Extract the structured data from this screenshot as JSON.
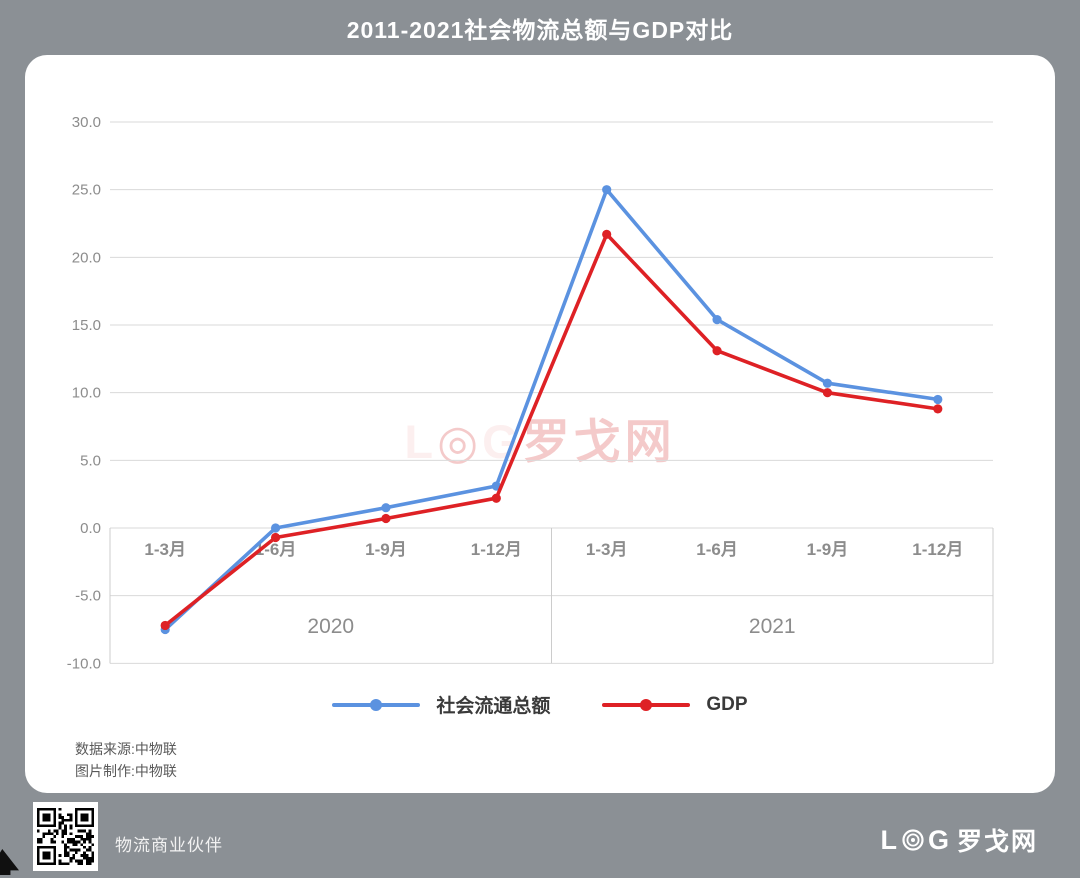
{
  "page": {
    "title": "2011-2021社会物流总额与GDP对比"
  },
  "colors": {
    "background": "#8b9095",
    "card": "#ffffff",
    "series_blue": "#5b92e0",
    "series_red": "#de2125",
    "gridline": "#dadada",
    "band_border": "#cccccc",
    "axis_text": "#8c8c8c",
    "legend_text": "#3a3a3a",
    "footer_text": "#595959"
  },
  "chart_data": {
    "type": "line",
    "title": "2011-2021社会物流总额与GDP对比",
    "categories": [
      "1-3月",
      "1-6月",
      "1-9月",
      "1-12月",
      "1-3月",
      "1-6月",
      "1-9月",
      "1-12月"
    ],
    "group_labels": [
      "2020",
      "2021"
    ],
    "series": [
      {
        "name": "社会流通总额",
        "color_key": "series_blue",
        "values": [
          -7.5,
          0.0,
          1.5,
          3.1,
          25.0,
          15.4,
          10.7,
          9.5
        ]
      },
      {
        "name": "GDP",
        "color_key": "series_red",
        "values": [
          -7.2,
          -0.7,
          0.7,
          2.2,
          21.7,
          13.1,
          10.0,
          8.8
        ]
      }
    ],
    "y_ticks": [
      {
        "label": "30.0",
        "value": 30
      },
      {
        "label": "25.0",
        "value": 25
      },
      {
        "label": "20.0",
        "value": 20
      },
      {
        "label": "15.0",
        "value": 15
      },
      {
        "label": "10.0",
        "value": 10
      },
      {
        "label": "5.0",
        "value": 5
      },
      {
        "label": "0.0",
        "value": 0
      },
      {
        "label": "-5.0",
        "value": -5
      },
      {
        "label": "-10.0",
        "value": -10
      }
    ],
    "ylim": [
      -10,
      30
    ],
    "grid": "horizontal",
    "legend_position": "bottom"
  },
  "legend": {
    "items": [
      {
        "label": "社会流通总额",
        "color_key": "series_blue"
      },
      {
        "label": "GDP",
        "color_key": "series_red"
      }
    ]
  },
  "watermark": {
    "l": "L",
    "ring": "◎",
    "g": "G",
    "cn": "罗戈网"
  },
  "footer": {
    "source": "数据来源:中物联",
    "credit": "图片制作:中物联"
  },
  "bottom_bar": {
    "qr_caption": "物流商业伙伴",
    "logo_l": "L",
    "logo_g": "G",
    "logo_cn": "罗戈网"
  }
}
